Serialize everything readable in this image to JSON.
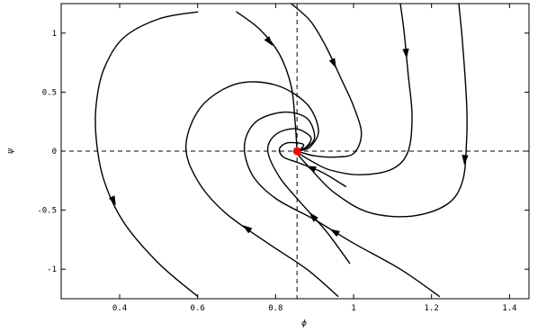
{
  "chart_data": {
    "type": "line",
    "title": "",
    "xlabel": "ϕ",
    "ylabel": "ψ",
    "xlim": [
      0.25,
      1.45
    ],
    "ylim": [
      -1.25,
      1.25
    ],
    "x_ticks": [
      0.4,
      0.6,
      0.8,
      1.0,
      1.2,
      1.4
    ],
    "x_tick_labels": [
      "0.4",
      "0.6",
      "0.8",
      "1",
      "1.2",
      "1.4"
    ],
    "y_ticks": [
      -1.0,
      -0.5,
      0.0,
      0.5,
      1.0
    ],
    "y_tick_labels": [
      "-1",
      "-0.5",
      "0",
      "0.5",
      "1"
    ],
    "grid": false,
    "legend": "none",
    "reference_lines": {
      "vertical_x": 0.855,
      "horizontal_y": 0.0
    },
    "fixed_point": {
      "x": 0.855,
      "y": 0.0,
      "color": "#ff0000"
    },
    "trajectories": [
      {
        "points": [
          [
            0.6,
            1.18
          ],
          [
            0.5,
            1.12
          ],
          [
            0.41,
            0.96
          ],
          [
            0.36,
            0.7
          ],
          [
            0.34,
            0.4
          ],
          [
            0.34,
            0.1
          ],
          [
            0.36,
            -0.25
          ],
          [
            0.41,
            -0.6
          ],
          [
            0.5,
            -0.95
          ],
          [
            0.6,
            -1.23
          ]
        ],
        "arrow_at": 7
      },
      {
        "points": [
          [
            0.7,
            1.18
          ],
          [
            0.76,
            1.03
          ],
          [
            0.81,
            0.82
          ],
          [
            0.84,
            0.55
          ],
          [
            0.85,
            0.25
          ],
          [
            0.855,
            0.0
          ]
        ],
        "arrow_at": 2
      },
      {
        "points": [
          [
            0.84,
            1.25
          ],
          [
            0.89,
            1.1
          ],
          [
            0.93,
            0.88
          ],
          [
            0.97,
            0.6
          ],
          [
            1.0,
            0.38
          ],
          [
            1.02,
            0.15
          ],
          [
            1.0,
            -0.02
          ],
          [
            0.95,
            -0.05
          ],
          [
            0.9,
            -0.04
          ],
          [
            0.865,
            -0.01
          ],
          [
            0.855,
            0.0
          ]
        ],
        "arrow_at": 3
      },
      {
        "points": [
          [
            1.12,
            1.25
          ],
          [
            1.13,
            1.0
          ],
          [
            1.14,
            0.65
          ],
          [
            1.15,
            0.3
          ],
          [
            1.14,
            0.0
          ],
          [
            1.1,
            -0.15
          ],
          [
            1.02,
            -0.2
          ],
          [
            0.94,
            -0.16
          ],
          [
            0.89,
            -0.08
          ],
          [
            0.86,
            -0.02
          ],
          [
            0.855,
            0.0
          ]
        ],
        "arrow_at": 2
      },
      {
        "points": [
          [
            1.27,
            1.25
          ],
          [
            1.28,
            0.9
          ],
          [
            1.29,
            0.4
          ],
          [
            1.29,
            0.1
          ],
          [
            1.28,
            -0.25
          ],
          [
            1.24,
            -0.45
          ],
          [
            1.15,
            -0.55
          ],
          [
            1.04,
            -0.52
          ],
          [
            0.95,
            -0.35
          ],
          [
            0.89,
            -0.15
          ],
          [
            0.86,
            -0.04
          ],
          [
            0.855,
            0.0
          ]
        ],
        "arrow_at": 4
      },
      {
        "points": [
          [
            0.96,
            -1.23
          ],
          [
            0.88,
            -1.0
          ],
          [
            0.78,
            -0.78
          ],
          [
            0.67,
            -0.52
          ],
          [
            0.6,
            -0.25
          ],
          [
            0.57,
            0.05
          ],
          [
            0.61,
            0.38
          ],
          [
            0.7,
            0.57
          ],
          [
            0.8,
            0.56
          ],
          [
            0.88,
            0.4
          ],
          [
            0.91,
            0.18
          ],
          [
            0.89,
            0.04
          ],
          [
            0.865,
            0.005
          ],
          [
            0.855,
            0.0
          ]
        ],
        "arrow_at": 3
      },
      {
        "points": [
          [
            1.22,
            -1.23
          ],
          [
            1.12,
            -1.0
          ],
          [
            1.0,
            -0.78
          ],
          [
            0.9,
            -0.58
          ],
          [
            0.8,
            -0.4
          ],
          [
            0.74,
            -0.2
          ],
          [
            0.72,
            0.05
          ],
          [
            0.75,
            0.25
          ],
          [
            0.82,
            0.33
          ],
          [
            0.88,
            0.28
          ],
          [
            0.9,
            0.12
          ],
          [
            0.88,
            0.03
          ],
          [
            0.86,
            0.0
          ],
          [
            0.855,
            0.0
          ]
        ],
        "arrow_at": 3
      },
      {
        "points": [
          [
            0.99,
            -0.95
          ],
          [
            0.93,
            -0.68
          ],
          [
            0.86,
            -0.42
          ],
          [
            0.81,
            -0.22
          ],
          [
            0.78,
            0.0
          ],
          [
            0.8,
            0.14
          ],
          [
            0.85,
            0.19
          ],
          [
            0.89,
            0.12
          ],
          [
            0.88,
            0.04
          ],
          [
            0.86,
            0.01
          ],
          [
            0.855,
            0.0
          ]
        ],
        "arrow_at": 2
      },
      {
        "points": [
          [
            0.98,
            -0.3
          ],
          [
            0.92,
            -0.18
          ],
          [
            0.86,
            -0.1
          ],
          [
            0.82,
            -0.05
          ],
          [
            0.81,
            0.02
          ],
          [
            0.83,
            0.07
          ],
          [
            0.87,
            0.06
          ],
          [
            0.865,
            0.02
          ],
          [
            0.855,
            0.0
          ]
        ],
        "arrow_at": 2
      }
    ]
  }
}
